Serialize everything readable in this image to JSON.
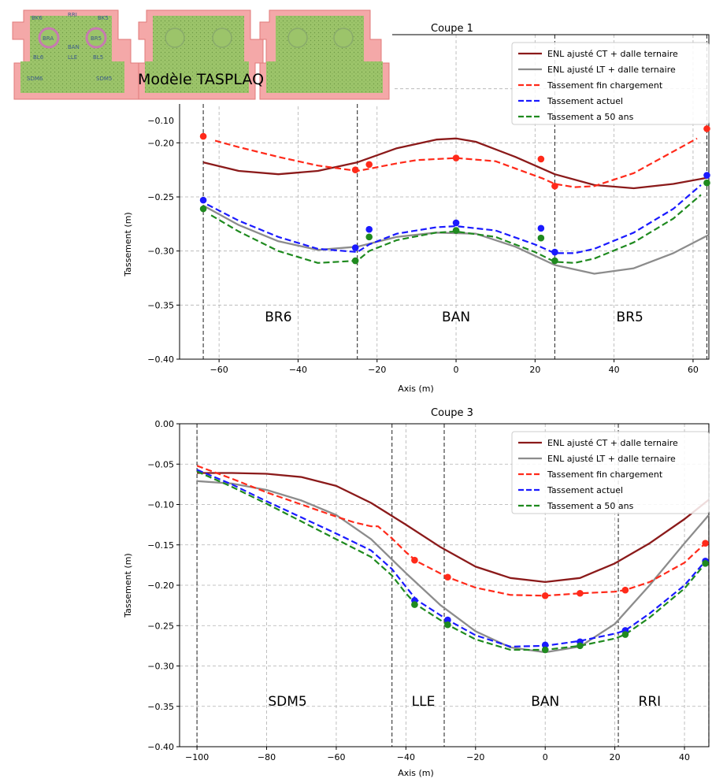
{
  "overlay": {
    "caption": "Modèle TASPLAQ",
    "zones_panel1": [
      "RRI",
      "BK6",
      "BK5",
      "BRA",
      "BR5",
      "BAN",
      "BL6",
      "LLE",
      "BL5",
      "SDM6",
      "SDM5"
    ]
  },
  "legend": [
    {
      "label": "ENL ajusté CT + dalle ternaire",
      "color": "#8b1a1a",
      "dashed": false
    },
    {
      "label": "ENL ajusté LT + dalle ternaire",
      "color": "#8c8c8c",
      "dashed": false
    },
    {
      "label": "Tassement fin chargement",
      "color": "#ff2a1a",
      "dashed": true
    },
    {
      "label": "Tassement actuel",
      "color": "#1a1aff",
      "dashed": true
    },
    {
      "label": "Tassement a 50 ans",
      "color": "#1f8a1f",
      "dashed": true
    }
  ],
  "chart_data": [
    {
      "type": "line",
      "title": "Coupe 1",
      "xlabel": "Axis (m)",
      "ylabel": "Tassement (m)",
      "xlim": [
        -70,
        64
      ],
      "ylim": [
        -0.4,
        -0.1
      ],
      "xticks": [
        -60,
        -40,
        -20,
        0,
        20,
        40,
        60
      ],
      "yticks": [
        -0.15,
        -0.2,
        -0.25,
        -0.3,
        -0.35,
        -0.4
      ],
      "ytick_labels": [
        "−0.15",
        "−0.20",
        "−0.25",
        "−0.30",
        "−0.35",
        "−0.40"
      ],
      "partial_top_tick": "−0.10",
      "grid": true,
      "legend_position": "top-right",
      "boundaries": [
        -64,
        -25,
        25,
        63.5
      ],
      "zones": [
        {
          "label": "BR6",
          "x": -45
        },
        {
          "label": "BAN",
          "x": 0
        },
        {
          "label": "BR5",
          "x": 44
        }
      ],
      "series": [
        {
          "name": "ENL ajusté CT + dalle ternaire",
          "style": "solid",
          "color": "#8b1a1a",
          "x": [
            -64,
            -55,
            -45,
            -35,
            -25,
            -15,
            -5,
            0,
            5,
            15,
            25,
            35,
            45,
            55,
            64
          ],
          "y": [
            -0.218,
            -0.226,
            -0.229,
            -0.226,
            -0.218,
            -0.205,
            -0.197,
            -0.196,
            -0.199,
            -0.213,
            -0.229,
            -0.239,
            -0.242,
            -0.238,
            -0.232
          ]
        },
        {
          "name": "ENL ajusté LT + dalle ternaire",
          "style": "solid",
          "color": "#8c8c8c",
          "x": [
            -64,
            -55,
            -45,
            -35,
            -25,
            -15,
            -5,
            5,
            15,
            25,
            35,
            45,
            55,
            64
          ],
          "y": [
            -0.258,
            -0.276,
            -0.291,
            -0.299,
            -0.296,
            -0.287,
            -0.283,
            -0.284,
            -0.296,
            -0.313,
            -0.321,
            -0.316,
            -0.302,
            -0.285
          ]
        },
        {
          "name": "Tassement fin chargement",
          "style": "dashed",
          "color": "#ff2a1a",
          "x": [
            -61,
            -55,
            -45,
            -35,
            -25,
            -22,
            -15,
            -10,
            0,
            10,
            22,
            25,
            30,
            35,
            45,
            55,
            61
          ],
          "y": [
            -0.198,
            -0.204,
            -0.213,
            -0.221,
            -0.226,
            -0.224,
            -0.219,
            -0.216,
            -0.214,
            -0.217,
            -0.233,
            -0.238,
            -0.241,
            -0.24,
            -0.228,
            -0.208,
            -0.196
          ]
        },
        {
          "name": "Tassement actuel",
          "style": "dashed",
          "color": "#1a1aff",
          "x": [
            -63,
            -55,
            -45,
            -35,
            -25,
            -22,
            -15,
            -5,
            0,
            10,
            20,
            25,
            30,
            35,
            45,
            55,
            62
          ],
          "y": [
            -0.257,
            -0.272,
            -0.287,
            -0.298,
            -0.301,
            -0.294,
            -0.284,
            -0.278,
            -0.277,
            -0.281,
            -0.294,
            -0.302,
            -0.302,
            -0.298,
            -0.283,
            -0.261,
            -0.239
          ]
        },
        {
          "name": "Tassement a 50 ans",
          "style": "dashed",
          "color": "#1f8a1f",
          "x": [
            -62,
            -55,
            -45,
            -35,
            -25,
            -22,
            -15,
            -5,
            0,
            10,
            20,
            25,
            30,
            35,
            45,
            55,
            62
          ],
          "y": [
            -0.267,
            -0.282,
            -0.3,
            -0.311,
            -0.309,
            -0.3,
            -0.29,
            -0.283,
            -0.282,
            -0.287,
            -0.301,
            -0.31,
            -0.311,
            -0.307,
            -0.292,
            -0.27,
            -0.248
          ]
        }
      ],
      "points": [
        {
          "name": "Tassement fin chargement",
          "color": "#ff2a1a",
          "x": [
            -64,
            -25.5,
            -22,
            0,
            21.5,
            25,
            63.5
          ],
          "y": [
            -0.194,
            -0.225,
            -0.22,
            -0.214,
            -0.215,
            -0.24,
            -0.187
          ]
        },
        {
          "name": "Tassement actuel",
          "color": "#1a1aff",
          "x": [
            -64,
            -25.5,
            -22,
            0,
            21.5,
            25,
            63.5
          ],
          "y": [
            -0.253,
            -0.297,
            -0.28,
            -0.274,
            -0.279,
            -0.301,
            -0.23
          ]
        },
        {
          "name": "Tassement a 50 ans",
          "color": "#1f8a1f",
          "x": [
            -64,
            -25.5,
            -22,
            0,
            21.5,
            25,
            63.5
          ],
          "y": [
            -0.261,
            -0.309,
            -0.287,
            -0.281,
            -0.288,
            -0.309,
            -0.237
          ]
        }
      ]
    },
    {
      "type": "line",
      "title": "Coupe 3",
      "xlabel": "Axis (m)",
      "ylabel": "Tassement (m)",
      "xlim": [
        -105,
        47
      ],
      "ylim": [
        -0.4,
        0.0
      ],
      "xticks": [
        -100,
        -80,
        -60,
        -40,
        -20,
        0,
        20,
        40
      ],
      "yticks": [
        0.0,
        -0.05,
        -0.1,
        -0.15,
        -0.2,
        -0.25,
        -0.3,
        -0.35,
        -0.4
      ],
      "ytick_labels": [
        "0.00",
        "−0.05",
        "−0.10",
        "−0.15",
        "−0.20",
        "−0.25",
        "−0.30",
        "−0.35",
        "−0.40"
      ],
      "grid": true,
      "legend_position": "top-right",
      "boundaries": [
        -100,
        -44,
        -29,
        21,
        47
      ],
      "zones": [
        {
          "label": "SDM5",
          "x": -74
        },
        {
          "label": "LLE",
          "x": -35
        },
        {
          "label": "BAN",
          "x": 0
        },
        {
          "label": "RRI",
          "x": 30
        }
      ],
      "series": [
        {
          "name": "ENL ajusté CT + dalle ternaire",
          "style": "solid",
          "color": "#8b1a1a",
          "x": [
            -100,
            -90,
            -80,
            -70,
            -60,
            -50,
            -40,
            -30,
            -20,
            -10,
            0,
            10,
            20,
            30,
            40,
            47
          ],
          "y": [
            -0.061,
            -0.061,
            -0.062,
            -0.066,
            -0.077,
            -0.098,
            -0.125,
            -0.153,
            -0.177,
            -0.191,
            -0.196,
            -0.191,
            -0.173,
            -0.148,
            -0.118,
            -0.094
          ]
        },
        {
          "name": "ENL ajusté LT + dalle ternaire",
          "style": "solid",
          "color": "#8c8c8c",
          "x": [
            -100,
            -90,
            -80,
            -70,
            -60,
            -50,
            -40,
            -30,
            -20,
            -10,
            0,
            10,
            20,
            30,
            40,
            47
          ],
          "y": [
            -0.071,
            -0.074,
            -0.082,
            -0.095,
            -0.113,
            -0.143,
            -0.185,
            -0.225,
            -0.257,
            -0.277,
            -0.283,
            -0.276,
            -0.248,
            -0.2,
            -0.148,
            -0.113
          ]
        },
        {
          "name": "Tassement fin chargement",
          "style": "dashed",
          "color": "#ff2a1a",
          "x": [
            -100,
            -90,
            -80,
            -70,
            -60,
            -55,
            -50,
            -48,
            -44,
            -40,
            -37,
            -28,
            -20,
            -10,
            0,
            10,
            20,
            23,
            30,
            40,
            46
          ],
          "y": [
            -0.052,
            -0.068,
            -0.085,
            -0.1,
            -0.115,
            -0.122,
            -0.127,
            -0.127,
            -0.142,
            -0.159,
            -0.17,
            -0.19,
            -0.203,
            -0.212,
            -0.213,
            -0.21,
            -0.208,
            -0.206,
            -0.196,
            -0.172,
            -0.148
          ]
        },
        {
          "name": "Tassement actuel",
          "style": "dashed",
          "color": "#1a1aff",
          "x": [
            -100,
            -90,
            -80,
            -70,
            -60,
            -50,
            -44,
            -40,
            -37,
            -28,
            -20,
            -10,
            0,
            10,
            20,
            23,
            30,
            40,
            46
          ],
          "y": [
            -0.057,
            -0.075,
            -0.096,
            -0.116,
            -0.136,
            -0.157,
            -0.18,
            -0.202,
            -0.218,
            -0.243,
            -0.262,
            -0.276,
            -0.275,
            -0.269,
            -0.26,
            -0.256,
            -0.235,
            -0.2,
            -0.17
          ]
        },
        {
          "name": "Tassement a 50 ans",
          "style": "dashed",
          "color": "#1f8a1f",
          "x": [
            -100,
            -90,
            -80,
            -70,
            -60,
            -50,
            -44,
            -40,
            -37,
            -28,
            -20,
            -10,
            0,
            10,
            20,
            23,
            30,
            40,
            46
          ],
          "y": [
            -0.059,
            -0.078,
            -0.099,
            -0.121,
            -0.143,
            -0.165,
            -0.188,
            -0.21,
            -0.224,
            -0.249,
            -0.267,
            -0.28,
            -0.28,
            -0.275,
            -0.266,
            -0.261,
            -0.24,
            -0.204,
            -0.173
          ]
        }
      ],
      "points": [
        {
          "name": "Tassement fin chargement",
          "color": "#ff2a1a",
          "x": [
            -37.5,
            -28,
            0,
            10,
            23,
            46
          ],
          "y": [
            -0.169,
            -0.19,
            -0.213,
            -0.21,
            -0.206,
            -0.148
          ]
        },
        {
          "name": "Tassement actuel",
          "color": "#1a1aff",
          "x": [
            -37.5,
            -28,
            0,
            10,
            23,
            46
          ],
          "y": [
            -0.219,
            -0.243,
            -0.274,
            -0.27,
            -0.256,
            -0.17
          ]
        },
        {
          "name": "Tassement a 50 ans",
          "color": "#1f8a1f",
          "x": [
            -37.5,
            -28,
            0,
            10,
            23,
            46
          ],
          "y": [
            -0.224,
            -0.249,
            -0.28,
            -0.275,
            -0.261,
            -0.173
          ]
        }
      ]
    }
  ]
}
